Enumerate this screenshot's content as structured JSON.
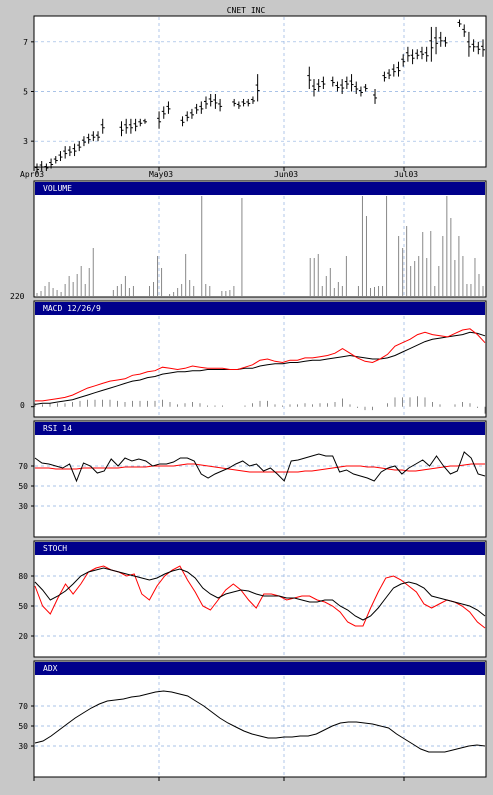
{
  "chart_data": {
    "type": "line",
    "title": "CNET INC",
    "x_labels": [
      "Apr03",
      "May03",
      "Jun03",
      "Jul03"
    ],
    "colors": {
      "header": "#00008b",
      "grid": "#8fb0e0",
      "series_black": "#000000",
      "series_red": "#ff0000",
      "volume": "#888888"
    },
    "price": {
      "ylim": [
        2.0,
        8.0
      ],
      "yticks": [
        3,
        5,
        7
      ],
      "bars": [
        [
          1.7,
          2.1
        ],
        [
          1.8,
          2.2
        ],
        [
          1.8,
          2.1
        ],
        [
          1.9,
          2.3
        ],
        [
          2.1,
          2.4
        ],
        [
          2.2,
          2.6
        ],
        [
          2.3,
          2.8
        ],
        [
          2.4,
          2.8
        ],
        [
          2.4,
          2.9
        ],
        [
          2.6,
          3.0
        ],
        [
          2.8,
          3.2
        ],
        [
          2.9,
          3.3
        ],
        [
          3.0,
          3.4
        ],
        [
          3.0,
          3.4
        ],
        [
          3.3,
          3.9
        ],
        [
          null,
          null
        ],
        [
          null,
          null
        ],
        [
          null,
          null
        ],
        [
          3.2,
          3.8
        ],
        [
          3.3,
          3.9
        ],
        [
          3.3,
          3.9
        ],
        [
          3.4,
          3.9
        ],
        [
          3.6,
          3.9
        ],
        [
          3.7,
          3.9
        ],
        [
          null,
          null
        ],
        [
          null,
          null
        ],
        [
          3.5,
          4.2
        ],
        [
          3.9,
          4.4
        ],
        [
          4.1,
          4.6
        ],
        [
          null,
          null
        ],
        [
          null,
          null
        ],
        [
          3.6,
          4.0
        ],
        [
          3.8,
          4.2
        ],
        [
          3.9,
          4.3
        ],
        [
          4.1,
          4.5
        ],
        [
          4.1,
          4.6
        ],
        [
          4.3,
          4.8
        ],
        [
          4.4,
          4.9
        ],
        [
          4.3,
          4.9
        ],
        [
          4.2,
          4.7
        ],
        [
          null,
          null
        ],
        [
          null,
          null
        ],
        [
          4.4,
          4.7
        ],
        [
          4.3,
          4.6
        ],
        [
          4.4,
          4.7
        ],
        [
          4.4,
          4.7
        ],
        [
          4.5,
          4.8
        ],
        [
          4.6,
          5.7
        ],
        [
          null,
          null
        ],
        [
          null,
          null
        ],
        [
          null,
          null
        ],
        [
          null,
          null
        ],
        [
          null,
          null
        ],
        [
          null,
          null
        ],
        [
          null,
          null
        ],
        [
          null,
          null
        ],
        [
          null,
          null
        ],
        [
          null,
          null
        ],
        [
          5.1,
          6.0
        ],
        [
          4.8,
          5.5
        ],
        [
          5.0,
          5.5
        ],
        [
          5.1,
          5.6
        ],
        [
          null,
          null
        ],
        [
          5.2,
          5.6
        ],
        [
          5.0,
          5.4
        ],
        [
          4.9,
          5.5
        ],
        [
          5.1,
          5.6
        ],
        [
          5.0,
          5.7
        ],
        [
          4.9,
          5.4
        ],
        [
          4.8,
          5.2
        ],
        [
          5.0,
          5.3
        ],
        [
          null,
          null
        ],
        [
          4.5,
          5.1
        ],
        [
          null,
          null
        ],
        [
          5.4,
          5.8
        ],
        [
          5.5,
          5.9
        ],
        [
          5.6,
          6.1
        ],
        [
          5.6,
          6.2
        ],
        [
          6.0,
          6.5
        ],
        [
          6.2,
          6.8
        ],
        [
          6.1,
          6.7
        ],
        [
          6.3,
          6.7
        ],
        [
          6.3,
          6.8
        ],
        [
          6.2,
          6.8
        ],
        [
          6.2,
          7.6
        ],
        [
          6.5,
          7.6
        ],
        [
          6.8,
          7.4
        ],
        [
          6.8,
          7.2
        ],
        [
          null,
          null
        ],
        [
          null,
          null
        ],
        [
          7.6,
          7.9
        ],
        [
          7.2,
          7.7
        ],
        [
          6.4,
          7.4
        ],
        [
          6.6,
          7.1
        ],
        [
          6.5,
          7.0
        ],
        [
          6.4,
          7.1
        ]
      ]
    },
    "volume": {
      "label": "VOLUME",
      "ylabel": "220",
      "values": [
        3,
        5,
        10,
        14,
        8,
        6,
        4,
        12,
        20,
        14,
        22,
        30,
        12,
        28,
        48,
        0,
        0,
        0,
        0,
        6,
        10,
        12,
        20,
        8,
        10,
        0,
        0,
        0,
        10,
        14,
        40,
        28,
        0,
        2,
        4,
        8,
        12,
        42,
        16,
        10,
        0,
        100,
        12,
        10,
        0,
        0,
        5,
        5,
        6,
        10,
        0,
        98,
        0,
        0,
        0,
        0,
        0,
        0,
        0,
        0,
        0,
        0,
        0,
        0,
        0,
        0,
        0,
        0,
        38,
        38,
        42,
        10,
        20,
        28,
        8,
        14,
        10,
        40,
        0,
        0,
        10,
        100,
        80,
        8,
        9,
        10,
        10,
        100,
        0,
        0,
        60,
        48,
        70,
        30,
        35,
        40,
        64,
        38,
        65,
        10,
        30,
        60,
        100,
        78,
        36,
        60,
        40,
        12,
        12,
        38,
        22,
        10
      ]
    },
    "macd": {
      "label": "MACD 12/26/9",
      "ylabel": "0",
      "ylim": [
        -0.08,
        0.78
      ],
      "macd": [
        0.05,
        0.05,
        0.06,
        0.07,
        0.08,
        0.1,
        0.13,
        0.16,
        0.18,
        0.2,
        0.22,
        0.23,
        0.24,
        0.27,
        0.28,
        0.3,
        0.31,
        0.34,
        0.33,
        0.32,
        0.33,
        0.35,
        0.34,
        0.33,
        0.33,
        0.33,
        0.32,
        0.32,
        0.34,
        0.36,
        0.4,
        0.41,
        0.39,
        0.38,
        0.4,
        0.4,
        0.42,
        0.42,
        0.43,
        0.44,
        0.46,
        0.5,
        0.46,
        0.42,
        0.39,
        0.38,
        0.41,
        0.45,
        0.52,
        0.55,
        0.58,
        0.62,
        0.64,
        0.62,
        0.61,
        0.6,
        0.63,
        0.66,
        0.67,
        0.62,
        0.55
      ],
      "signal": [
        0.02,
        0.03,
        0.03,
        0.04,
        0.05,
        0.06,
        0.08,
        0.1,
        0.12,
        0.14,
        0.16,
        0.18,
        0.2,
        0.22,
        0.23,
        0.25,
        0.26,
        0.28,
        0.29,
        0.3,
        0.3,
        0.31,
        0.31,
        0.32,
        0.32,
        0.32,
        0.32,
        0.32,
        0.33,
        0.33,
        0.35,
        0.36,
        0.37,
        0.37,
        0.38,
        0.38,
        0.39,
        0.4,
        0.4,
        0.41,
        0.42,
        0.43,
        0.44,
        0.43,
        0.42,
        0.41,
        0.41,
        0.42,
        0.44,
        0.47,
        0.5,
        0.53,
        0.56,
        0.58,
        0.59,
        0.6,
        0.61,
        0.62,
        0.64,
        0.63,
        0.61
      ],
      "hist": [
        0.03,
        0.02,
        0.03,
        0.03,
        0.03,
        0.04,
        0.05,
        0.06,
        0.06,
        0.06,
        0.06,
        0.05,
        0.04,
        0.05,
        0.05,
        0.05,
        0.05,
        0.06,
        0.04,
        0.02,
        0.03,
        0.04,
        0.03,
        0.01,
        0.01,
        0.01,
        0.0,
        0.0,
        0.01,
        0.03,
        0.05,
        0.05,
        0.02,
        0.01,
        0.02,
        0.02,
        0.03,
        0.02,
        0.03,
        0.03,
        0.04,
        0.07,
        0.02,
        -0.01,
        -0.03,
        -0.03,
        0.0,
        0.03,
        0.08,
        0.08,
        0.08,
        0.09,
        0.08,
        0.04,
        0.02,
        0.0,
        0.02,
        0.04,
        0.03,
        -0.01,
        -0.06
      ]
    },
    "rsi": {
      "label": "RSI 14",
      "ylim": [
        0,
        100
      ],
      "yticks": [
        30,
        50,
        70
      ],
      "black": [
        78,
        73,
        72,
        70,
        68,
        72,
        55,
        73,
        70,
        63,
        65,
        77,
        70,
        78,
        75,
        77,
        75,
        70,
        72,
        72,
        74,
        78,
        78,
        75,
        62,
        58,
        62,
        65,
        68,
        72,
        75,
        70,
        72,
        65,
        68,
        62,
        55,
        75,
        76,
        78,
        80,
        82,
        80,
        80,
        64,
        66,
        62,
        60,
        58,
        55,
        64,
        68,
        70,
        62,
        68,
        72,
        76,
        70,
        80,
        70,
        62,
        65,
        84,
        78,
        62,
        60
      ],
      "red": [
        68,
        68,
        68,
        67,
        67,
        67,
        67,
        68,
        68,
        68,
        68,
        68,
        68,
        69,
        69,
        69,
        69,
        70,
        70,
        70,
        70,
        71,
        72,
        72,
        71,
        70,
        69,
        68,
        67,
        66,
        65,
        64,
        64,
        64,
        64,
        64,
        64,
        64,
        64,
        65,
        65,
        66,
        67,
        68,
        69,
        70,
        70,
        70,
        69,
        69,
        68,
        67,
        66,
        66,
        65,
        65,
        66,
        67,
        68,
        69,
        70,
        70,
        71,
        72,
        72,
        72
      ]
    },
    "stoch": {
      "label": "STOCH",
      "ylim": [
        0,
        100
      ],
      "yticks": [
        20,
        50,
        80
      ],
      "black": [
        74,
        66,
        56,
        60,
        65,
        72,
        80,
        84,
        86,
        88,
        86,
        84,
        82,
        80,
        78,
        76,
        78,
        82,
        85,
        87,
        84,
        78,
        68,
        62,
        58,
        62,
        64,
        66,
        65,
        62,
        60,
        60,
        60,
        58,
        58,
        56,
        54,
        54,
        56,
        56,
        50,
        46,
        40,
        36,
        40,
        48,
        58,
        68,
        72,
        74,
        72,
        68,
        60,
        58,
        56,
        54,
        52,
        50,
        46,
        40
      ],
      "red": [
        70,
        50,
        42,
        58,
        72,
        62,
        72,
        84,
        88,
        90,
        86,
        84,
        80,
        82,
        62,
        56,
        70,
        80,
        86,
        90,
        76,
        64,
        50,
        46,
        56,
        66,
        72,
        66,
        56,
        48,
        62,
        62,
        60,
        56,
        58,
        60,
        60,
        56,
        54,
        50,
        44,
        34,
        30,
        30,
        48,
        64,
        78,
        80,
        76,
        70,
        64,
        52,
        48,
        52,
        56,
        54,
        50,
        44,
        34,
        28
      ]
    },
    "adx": {
      "label": "ADX",
      "ylim": [
        0,
        100
      ],
      "yticks": [
        30,
        50,
        70
      ],
      "values": [
        33,
        35,
        40,
        46,
        52,
        58,
        63,
        68,
        72,
        75,
        76,
        77,
        79,
        80,
        82,
        84,
        85,
        84,
        82,
        80,
        75,
        70,
        64,
        58,
        53,
        49,
        45,
        42,
        40,
        38,
        38,
        39,
        39,
        40,
        40,
        42,
        46,
        50,
        53,
        54,
        54,
        53,
        52,
        50,
        48,
        42,
        37,
        32,
        27,
        24,
        24,
        24,
        26,
        28,
        30,
        31,
        30
      ]
    }
  }
}
